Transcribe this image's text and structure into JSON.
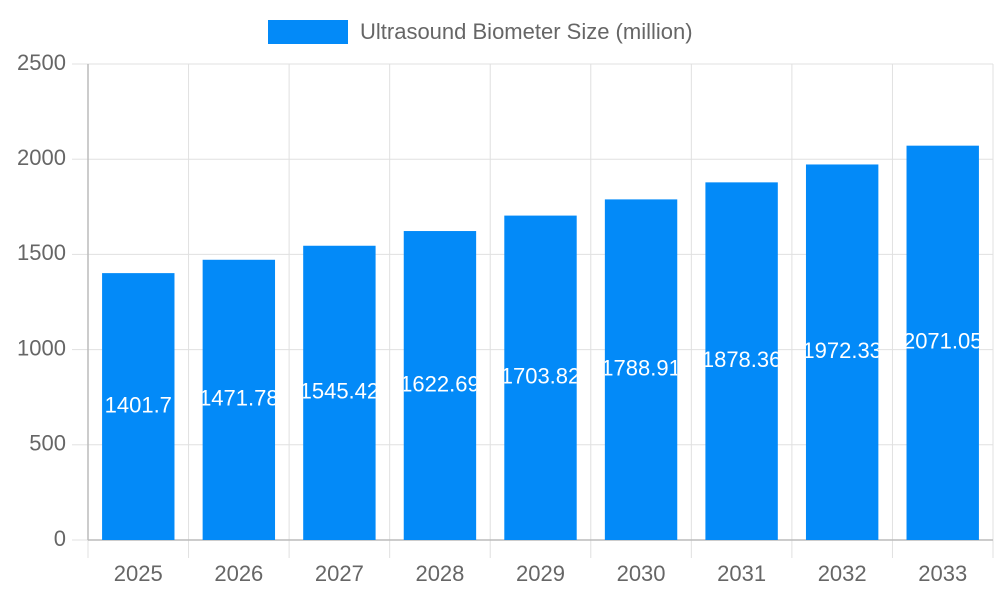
{
  "chart_data": {
    "type": "bar",
    "categories": [
      "2025",
      "2026",
      "2027",
      "2028",
      "2029",
      "2030",
      "2031",
      "2032",
      "2033"
    ],
    "series": [
      {
        "name": "Ultrasound Biometer Size (million)",
        "color": "#038af8",
        "values": [
          1401.7,
          1471.78,
          1545.42,
          1622.69,
          1703.82,
          1788.91,
          1878.36,
          1972.33,
          2071.05
        ]
      }
    ],
    "ylim": [
      0,
      2500
    ],
    "yticks": [
      0,
      500,
      1000,
      1500,
      2000,
      2500
    ],
    "grid": true,
    "legend": "top"
  }
}
